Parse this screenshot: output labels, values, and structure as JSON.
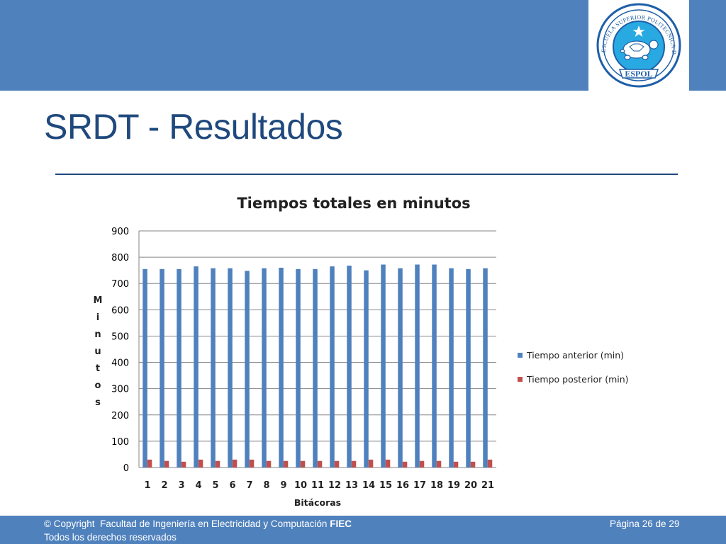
{
  "slide": {
    "title": "SRDT - Resultados"
  },
  "logo": {
    "ring_text": "ESCUELA SUPERIOR POLITECNICA DEL LITORAL",
    "banner_text": "ESPOL",
    "colors": {
      "ring": "#1e5ea8",
      "disc": "#29a9e1",
      "turtle": "#ffffff"
    }
  },
  "footer": {
    "copyright": "© Copyright",
    "faculty_text": "Facultad de Ingeniería en Electricidad y Computación",
    "faculty_abbr": "FIEC",
    "rights": "Todos los derechos reservados",
    "page_indicator": "Página 26 de 29"
  },
  "colors": {
    "header_bar": "#4f81bd",
    "title_text": "#1f497d",
    "series_anterior": "#4f81bd",
    "series_posterior": "#c0504d",
    "gridline": "#868686"
  },
  "chart_data": {
    "type": "bar",
    "title": "Tiempos totales en minutos",
    "xlabel": "Bitácoras",
    "ylabel": "Minutos",
    "ylim": [
      0,
      900
    ],
    "yticks": [
      0,
      100,
      200,
      300,
      400,
      500,
      600,
      700,
      800,
      900
    ],
    "categories": [
      "1",
      "2",
      "3",
      "4",
      "5",
      "6",
      "7",
      "8",
      "9",
      "10",
      "11",
      "12",
      "13",
      "14",
      "15",
      "16",
      "17",
      "18",
      "19",
      "20",
      "21"
    ],
    "grid": true,
    "legend_position": "right",
    "series": [
      {
        "name": "Tiempo anterior (min)",
        "color": "#4f81bd",
        "values": [
          755,
          755,
          755,
          765,
          758,
          758,
          748,
          758,
          760,
          755,
          755,
          765,
          768,
          750,
          772,
          758,
          772,
          772,
          758,
          755,
          758
        ]
      },
      {
        "name": "Tiempo posterior (min)",
        "color": "#c0504d",
        "values": [
          30,
          25,
          22,
          30,
          25,
          30,
          30,
          25,
          25,
          25,
          25,
          25,
          25,
          30,
          30,
          22,
          25,
          25,
          22,
          22,
          30
        ]
      }
    ]
  }
}
